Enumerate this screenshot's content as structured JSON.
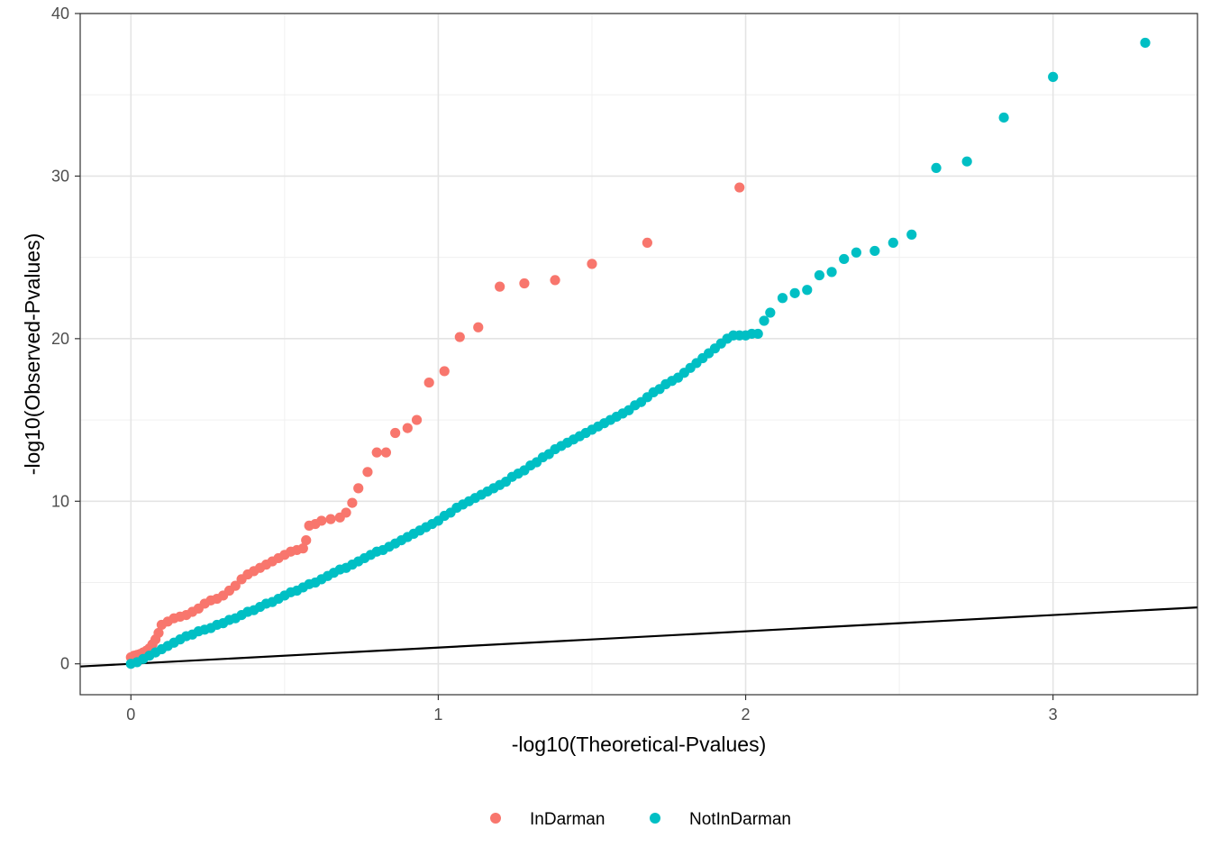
{
  "chart_data": {
    "type": "scatter",
    "xlabel": "-log10(Theoretical-Pvalues)",
    "ylabel": "-log10(Observed-Pvalues)",
    "xlim": [
      -0.165,
      3.47
    ],
    "ylim": [
      -1.9,
      40.0
    ],
    "x_ticks": [
      0,
      1,
      2,
      3
    ],
    "y_ticks": [
      0,
      10,
      20,
      30,
      40
    ],
    "x_tick_labels": [
      "0",
      "1",
      "2",
      "3"
    ],
    "y_tick_labels": [
      "0",
      "10",
      "20",
      "30",
      "40"
    ],
    "grid": true,
    "legend_position": "bottom",
    "reference_line": {
      "intercept": 0,
      "slope": 1,
      "color": "#000000"
    },
    "series": [
      {
        "name": "InDarman",
        "color": "#F8766D",
        "points": [
          [
            0.0,
            0.4
          ],
          [
            0.01,
            0.5
          ],
          [
            0.02,
            0.55
          ],
          [
            0.03,
            0.6
          ],
          [
            0.04,
            0.7
          ],
          [
            0.05,
            0.8
          ],
          [
            0.06,
            0.95
          ],
          [
            0.07,
            1.2
          ],
          [
            0.08,
            1.5
          ],
          [
            0.09,
            1.9
          ],
          [
            0.1,
            2.4
          ],
          [
            0.12,
            2.6
          ],
          [
            0.14,
            2.8
          ],
          [
            0.16,
            2.9
          ],
          [
            0.18,
            3.0
          ],
          [
            0.2,
            3.2
          ],
          [
            0.22,
            3.4
          ],
          [
            0.24,
            3.7
          ],
          [
            0.26,
            3.9
          ],
          [
            0.28,
            4.0
          ],
          [
            0.3,
            4.2
          ],
          [
            0.32,
            4.5
          ],
          [
            0.34,
            4.8
          ],
          [
            0.36,
            5.2
          ],
          [
            0.38,
            5.5
          ],
          [
            0.4,
            5.7
          ],
          [
            0.42,
            5.9
          ],
          [
            0.44,
            6.1
          ],
          [
            0.46,
            6.3
          ],
          [
            0.48,
            6.5
          ],
          [
            0.5,
            6.7
          ],
          [
            0.52,
            6.9
          ],
          [
            0.54,
            7.0
          ],
          [
            0.56,
            7.1
          ],
          [
            0.57,
            7.6
          ],
          [
            0.58,
            8.5
          ],
          [
            0.6,
            8.6
          ],
          [
            0.62,
            8.8
          ],
          [
            0.65,
            8.9
          ],
          [
            0.68,
            9.0
          ],
          [
            0.7,
            9.3
          ],
          [
            0.72,
            9.9
          ],
          [
            0.74,
            10.8
          ],
          [
            0.77,
            11.8
          ],
          [
            0.8,
            13.0
          ],
          [
            0.83,
            13.0
          ],
          [
            0.86,
            14.2
          ],
          [
            0.9,
            14.5
          ],
          [
            0.93,
            15.0
          ],
          [
            0.97,
            17.3
          ],
          [
            1.02,
            18.0
          ],
          [
            1.07,
            20.1
          ],
          [
            1.13,
            20.7
          ],
          [
            1.2,
            23.2
          ],
          [
            1.28,
            23.4
          ],
          [
            1.38,
            23.6
          ],
          [
            1.5,
            24.6
          ],
          [
            1.68,
            25.9
          ],
          [
            1.98,
            29.3
          ]
        ]
      },
      {
        "name": "NotInDarman",
        "color": "#00BFC4",
        "points": [
          [
            0.0,
            0.0
          ],
          [
            0.02,
            0.1
          ],
          [
            0.04,
            0.3
          ],
          [
            0.06,
            0.5
          ],
          [
            0.08,
            0.7
          ],
          [
            0.1,
            0.9
          ],
          [
            0.12,
            1.1
          ],
          [
            0.14,
            1.3
          ],
          [
            0.16,
            1.5
          ],
          [
            0.18,
            1.7
          ],
          [
            0.2,
            1.8
          ],
          [
            0.22,
            2.0
          ],
          [
            0.24,
            2.1
          ],
          [
            0.26,
            2.2
          ],
          [
            0.28,
            2.4
          ],
          [
            0.3,
            2.5
          ],
          [
            0.32,
            2.7
          ],
          [
            0.34,
            2.8
          ],
          [
            0.36,
            3.0
          ],
          [
            0.38,
            3.2
          ],
          [
            0.4,
            3.3
          ],
          [
            0.42,
            3.5
          ],
          [
            0.44,
            3.7
          ],
          [
            0.46,
            3.8
          ],
          [
            0.48,
            4.0
          ],
          [
            0.5,
            4.2
          ],
          [
            0.52,
            4.4
          ],
          [
            0.54,
            4.5
          ],
          [
            0.56,
            4.7
          ],
          [
            0.58,
            4.9
          ],
          [
            0.6,
            5.0
          ],
          [
            0.62,
            5.2
          ],
          [
            0.64,
            5.4
          ],
          [
            0.66,
            5.6
          ],
          [
            0.68,
            5.8
          ],
          [
            0.7,
            5.9
          ],
          [
            0.72,
            6.1
          ],
          [
            0.74,
            6.3
          ],
          [
            0.76,
            6.5
          ],
          [
            0.78,
            6.7
          ],
          [
            0.8,
            6.9
          ],
          [
            0.82,
            7.0
          ],
          [
            0.84,
            7.2
          ],
          [
            0.86,
            7.4
          ],
          [
            0.88,
            7.6
          ],
          [
            0.9,
            7.8
          ],
          [
            0.92,
            8.0
          ],
          [
            0.94,
            8.2
          ],
          [
            0.96,
            8.4
          ],
          [
            0.98,
            8.6
          ],
          [
            1.0,
            8.8
          ],
          [
            1.02,
            9.1
          ],
          [
            1.04,
            9.3
          ],
          [
            1.06,
            9.6
          ],
          [
            1.08,
            9.8
          ],
          [
            1.1,
            10.0
          ],
          [
            1.12,
            10.2
          ],
          [
            1.14,
            10.4
          ],
          [
            1.16,
            10.6
          ],
          [
            1.18,
            10.8
          ],
          [
            1.2,
            11.0
          ],
          [
            1.22,
            11.2
          ],
          [
            1.24,
            11.5
          ],
          [
            1.26,
            11.7
          ],
          [
            1.28,
            11.9
          ],
          [
            1.3,
            12.2
          ],
          [
            1.32,
            12.4
          ],
          [
            1.34,
            12.7
          ],
          [
            1.36,
            12.9
          ],
          [
            1.38,
            13.2
          ],
          [
            1.4,
            13.4
          ],
          [
            1.42,
            13.6
          ],
          [
            1.44,
            13.8
          ],
          [
            1.46,
            14.0
          ],
          [
            1.48,
            14.2
          ],
          [
            1.5,
            14.4
          ],
          [
            1.52,
            14.6
          ],
          [
            1.54,
            14.8
          ],
          [
            1.56,
            15.0
          ],
          [
            1.58,
            15.2
          ],
          [
            1.6,
            15.4
          ],
          [
            1.62,
            15.6
          ],
          [
            1.64,
            15.9
          ],
          [
            1.66,
            16.1
          ],
          [
            1.68,
            16.4
          ],
          [
            1.7,
            16.7
          ],
          [
            1.72,
            16.9
          ],
          [
            1.74,
            17.2
          ],
          [
            1.76,
            17.4
          ],
          [
            1.78,
            17.6
          ],
          [
            1.8,
            17.9
          ],
          [
            1.82,
            18.2
          ],
          [
            1.84,
            18.5
          ],
          [
            1.86,
            18.8
          ],
          [
            1.88,
            19.1
          ],
          [
            1.9,
            19.4
          ],
          [
            1.92,
            19.7
          ],
          [
            1.94,
            20.0
          ],
          [
            1.96,
            20.2
          ],
          [
            1.98,
            20.2
          ],
          [
            2.0,
            20.2
          ],
          [
            2.02,
            20.3
          ],
          [
            2.04,
            20.3
          ],
          [
            2.06,
            21.1
          ],
          [
            2.08,
            21.6
          ],
          [
            2.12,
            22.5
          ],
          [
            2.16,
            22.8
          ],
          [
            2.2,
            23.0
          ],
          [
            2.24,
            23.9
          ],
          [
            2.28,
            24.1
          ],
          [
            2.32,
            24.9
          ],
          [
            2.36,
            25.3
          ],
          [
            2.42,
            25.4
          ],
          [
            2.48,
            25.9
          ],
          [
            2.54,
            26.4
          ],
          [
            2.62,
            30.5
          ],
          [
            2.72,
            30.9
          ],
          [
            2.84,
            33.6
          ],
          [
            3.0,
            36.1
          ],
          [
            3.3,
            38.2
          ]
        ]
      }
    ]
  }
}
